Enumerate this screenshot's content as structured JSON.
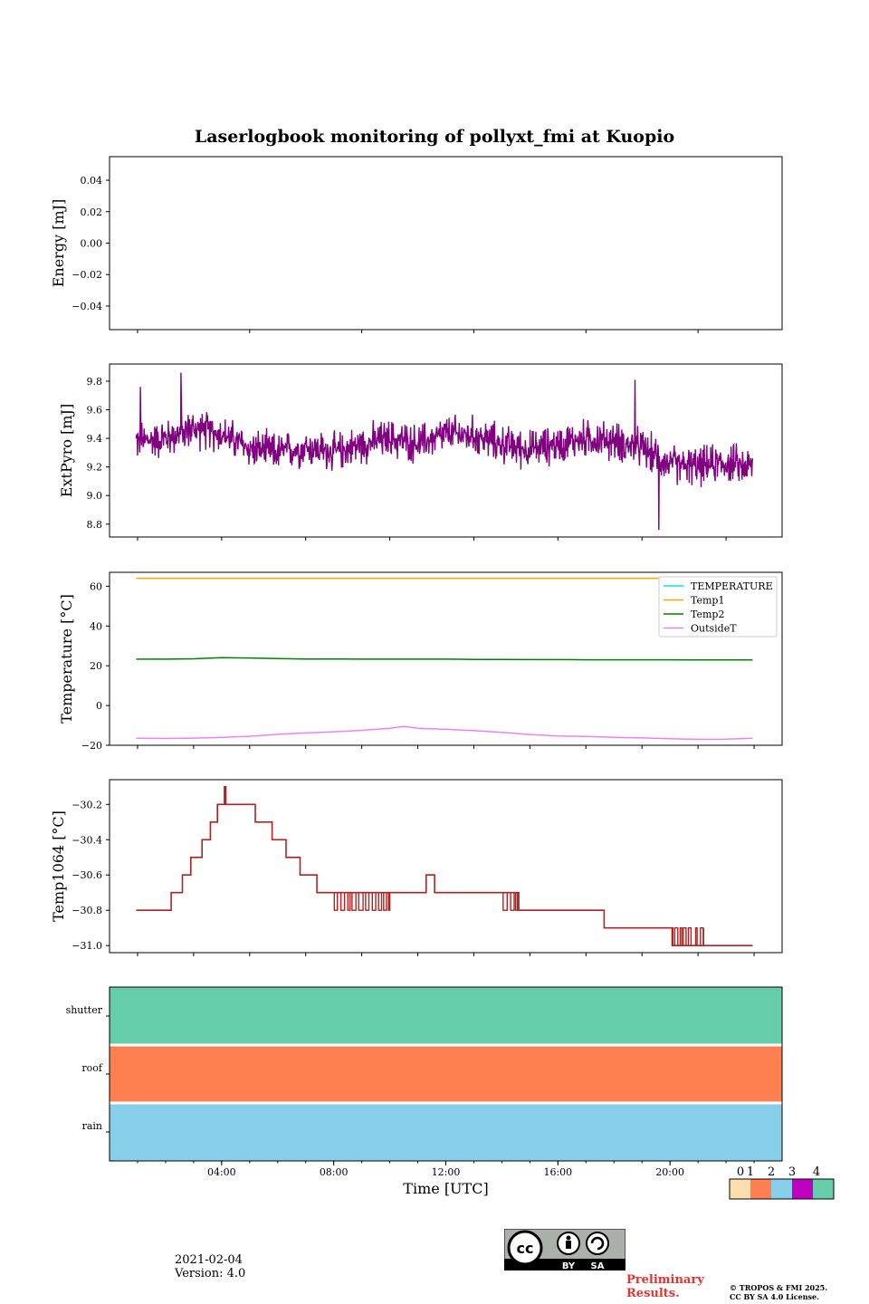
{
  "title": "Laserlogbook monitoring of pollyxt_fmi at Kuopio",
  "footer": {
    "date": "2021-02-04",
    "version": "Version: 4.0",
    "preliminary_line1": "Preliminary",
    "preliminary_line2": "Results.",
    "copyright_line1": "© TROPOS & FMI 2025.",
    "copyright_line2": "CC BY SA 4.0 License.",
    "license_badge": {
      "cc": "cc",
      "by": "BY",
      "sa": "SA"
    }
  },
  "colors": {
    "extpyro": "#800080",
    "temperature": "#00e5ee",
    "temp1": "#ffa500",
    "temp2": "#008000",
    "outsideT": "#ee82ee",
    "temp1064": "#b22222",
    "flag_levels": [
      "#ffdead",
      "#ff7f50",
      "#87ceeb",
      "#c000c0",
      "#66cdaa"
    ]
  },
  "chart_data": [
    {
      "type": "line",
      "id": "energy",
      "title": "",
      "ylabel": "Energy [mJ]",
      "ylim": [
        -0.055,
        0.055
      ],
      "yticks": [
        0.04,
        0.02,
        0.0,
        -0.02,
        -0.04
      ],
      "ytick_labels": [
        "0.04",
        "0.02",
        "0.00",
        "−0.02",
        "−0.04"
      ],
      "series": []
    },
    {
      "type": "line",
      "id": "extpyro",
      "ylabel": "ExtPyro [mJ]",
      "ylim": [
        8.71,
        9.92
      ],
      "yticks": [
        9.8,
        9.6,
        9.4,
        9.2,
        9.0,
        8.8
      ],
      "ytick_labels": [
        "9.8",
        "9.6",
        "9.4",
        "9.2",
        "9.0",
        "8.8"
      ],
      "x_hours": [
        1,
        2,
        3,
        4,
        5,
        6,
        7,
        8,
        9,
        10,
        11,
        12,
        13,
        14,
        15,
        16,
        17,
        18,
        19,
        20,
        21,
        22,
        23
      ],
      "series": [
        {
          "name": "ExtPyro",
          "mean": [
            9.38,
            9.4,
            9.47,
            9.43,
            9.33,
            9.3,
            9.34,
            9.3,
            9.36,
            9.4,
            9.36,
            9.43,
            9.42,
            9.36,
            9.32,
            9.36,
            9.4,
            9.38,
            9.33,
            9.22,
            9.2,
            9.23,
            9.2
          ],
          "spread": 0.17,
          "extremes": [
            {
              "x": 2.55,
              "y": 9.86
            },
            {
              "x": 19.6,
              "y": 8.76
            },
            {
              "x": 18.75,
              "y": 9.81
            },
            {
              "x": 1.1,
              "y": 9.76
            }
          ]
        }
      ]
    },
    {
      "type": "line",
      "id": "temperature",
      "ylabel": "Temperature [°C]",
      "ylim": [
        -20,
        67
      ],
      "yticks": [
        60,
        40,
        20,
        0,
        -20
      ],
      "ytick_labels": [
        "60",
        "40",
        "20",
        "0",
        "−20"
      ],
      "legend_position": "top-right",
      "x_hours": [
        0.95,
        2,
        3,
        4,
        5,
        6,
        7,
        8,
        9,
        10,
        10.5,
        11,
        12,
        13,
        14,
        15,
        16,
        17,
        18,
        19,
        20,
        21,
        22,
        22.95
      ],
      "series": [
        {
          "name": "TEMPERATURE",
          "values": []
        },
        {
          "name": "Temp1",
          "values": [
            64,
            64,
            64,
            64,
            64,
            64,
            64,
            64,
            64,
            64,
            64,
            64,
            64,
            64,
            64,
            64,
            64,
            64,
            64,
            64,
            64,
            64,
            64,
            64
          ]
        },
        {
          "name": "Temp2",
          "values": [
            23.3,
            23.3,
            23.5,
            24.1,
            23.9,
            23.6,
            23.4,
            23.4,
            23.3,
            23.3,
            23.3,
            23.3,
            23.3,
            23.2,
            23.2,
            23.1,
            23.1,
            23.0,
            23.0,
            23.0,
            23.0,
            22.9,
            22.9,
            22.9
          ]
        },
        {
          "name": "OutsideT",
          "values": [
            -16.5,
            -16.6,
            -16.4,
            -16.0,
            -15.5,
            -14.5,
            -13.8,
            -13.2,
            -12.5,
            -11.5,
            -10.5,
            -11.5,
            -12.0,
            -12.6,
            -13.5,
            -14.6,
            -15.3,
            -15.6,
            -16.0,
            -16.3,
            -16.7,
            -17.0,
            -16.9,
            -16.5
          ]
        }
      ]
    },
    {
      "type": "line",
      "id": "temp1064",
      "ylabel": "Temp1064 [°C]",
      "ylim": [
        -31.04,
        -30.06
      ],
      "yticks": [
        -30.2,
        -30.4,
        -30.6,
        -30.8,
        -31.0
      ],
      "ytick_labels": [
        "−30.2",
        "−30.4",
        "−30.6",
        "−30.8",
        "−31.0"
      ],
      "series": [
        {
          "name": "Temp1064",
          "steps": [
            [
              0.95,
              -30.8
            ],
            [
              2.2,
              -30.7
            ],
            [
              2.6,
              -30.6
            ],
            [
              2.9,
              -30.5
            ],
            [
              3.3,
              -30.4
            ],
            [
              3.6,
              -30.3
            ],
            [
              3.85,
              -30.2
            ],
            [
              4.1,
              -30.1
            ],
            [
              4.15,
              -30.2
            ],
            [
              5.2,
              -30.3
            ],
            [
              5.8,
              -30.4
            ],
            [
              6.3,
              -30.5
            ],
            [
              6.8,
              -30.6
            ],
            [
              7.4,
              -30.7
            ],
            [
              10.5,
              -30.7
            ],
            [
              11.3,
              -30.6
            ],
            [
              11.6,
              -30.7
            ],
            [
              13.9,
              -30.7
            ],
            [
              14.6,
              -30.8
            ],
            [
              17.6,
              -30.8
            ],
            [
              17.65,
              -30.9
            ],
            [
              19.7,
              -30.9
            ],
            [
              20.1,
              -31.0
            ],
            [
              22.95,
              -31.0
            ]
          ],
          "flicker_ranges": [
            {
              "from": 7.9,
              "to": 10.0,
              "low": -30.8,
              "high": -30.7
            },
            {
              "from": 13.9,
              "to": 14.6,
              "low": -30.8,
              "high": -30.7
            },
            {
              "from": 20.0,
              "to": 21.2,
              "low": -31.0,
              "high": -30.9
            }
          ]
        }
      ]
    },
    {
      "type": "heatmap",
      "id": "flags",
      "rows": [
        "shutter",
        "roof",
        "rain"
      ],
      "row_values": [
        4,
        1,
        2
      ],
      "xlabel": "Time [UTC]",
      "xticks": [
        "04:00",
        "08:00",
        "12:00",
        "16:00",
        "20:00"
      ],
      "x_range_hours": [
        0,
        24
      ],
      "colorbar": {
        "ticks": [
          "0",
          "1",
          "2",
          "3",
          "4"
        ]
      }
    }
  ]
}
